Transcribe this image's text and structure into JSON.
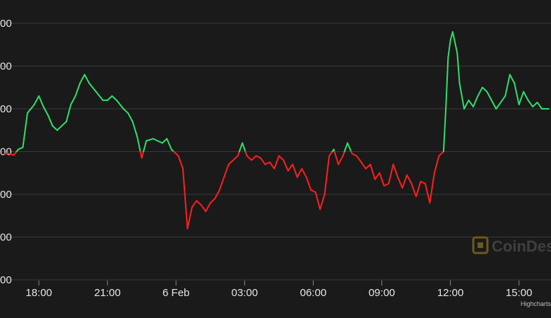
{
  "colors": {
    "background": "#1a1a1a",
    "grid": "#3a3a3a",
    "up": "#2ee06a",
    "down": "#ff1f1f",
    "text": "#e6e6e6"
  },
  "watermark": {
    "text": "CoinDesk",
    "icon": "coindesk-logo-icon"
  },
  "credit": "Highcharts",
  "chart_data": {
    "type": "line",
    "title": "",
    "xlabel": "",
    "ylabel": "",
    "y_tick_labels": [
      "00",
      "00",
      "00",
      "00",
      "00",
      "00",
      "00"
    ],
    "y_tick_levels": [
      6,
      5,
      4,
      3,
      2,
      1,
      0
    ],
    "ylim": [
      0,
      6.3
    ],
    "xlim": [
      16.3,
      40.4
    ],
    "x_tick_labels": [
      "18:00",
      "21:00",
      "6 Feb",
      "03:00",
      "06:00",
      "09:00",
      "12:00",
      "15:00"
    ],
    "x_tick_hours": [
      18,
      21,
      24,
      27,
      30,
      33,
      36,
      39
    ],
    "grid": true,
    "legend": "none",
    "color_rule": "green above reference level, red below",
    "reference_level": 3.0,
    "x": [
      16.5,
      16.7,
      16.9,
      17.1,
      17.3,
      17.5,
      17.8,
      18.0,
      18.2,
      18.4,
      18.6,
      18.8,
      19.0,
      19.2,
      19.4,
      19.6,
      19.8,
      20.0,
      20.2,
      20.5,
      20.8,
      21.0,
      21.2,
      21.4,
      21.7,
      21.9,
      22.1,
      22.3,
      22.5,
      22.7,
      23.0,
      23.2,
      23.4,
      23.6,
      23.8,
      24.0,
      24.1,
      24.3,
      24.5,
      24.7,
      24.9,
      25.1,
      25.3,
      25.5,
      25.7,
      25.9,
      26.1,
      26.3,
      26.5,
      26.7,
      26.9,
      27.1,
      27.3,
      27.5,
      27.7,
      27.9,
      28.1,
      28.3,
      28.5,
      28.7,
      28.9,
      29.1,
      29.3,
      29.5,
      29.7,
      29.9,
      30.1,
      30.3,
      30.5,
      30.7,
      30.9,
      31.1,
      31.3,
      31.5,
      31.7,
      31.9,
      32.1,
      32.3,
      32.5,
      32.7,
      32.9,
      33.1,
      33.3,
      33.5,
      33.7,
      33.9,
      34.1,
      34.3,
      34.5,
      34.7,
      34.9,
      35.1,
      35.3,
      35.5,
      35.7,
      35.8,
      35.9,
      36.0,
      36.1,
      36.2,
      36.3,
      36.4,
      36.6,
      36.8,
      37.0,
      37.2,
      37.4,
      37.6,
      37.8,
      38.0,
      38.2,
      38.4,
      38.6,
      38.8,
      39.0,
      39.2,
      39.4,
      39.6,
      39.8,
      40.0,
      40.3
    ],
    "y": [
      2.95,
      2.95,
      2.92,
      3.05,
      3.1,
      3.9,
      4.1,
      4.3,
      4.05,
      3.85,
      3.6,
      3.5,
      3.6,
      3.7,
      4.1,
      4.3,
      4.6,
      4.8,
      4.6,
      4.4,
      4.2,
      4.2,
      4.3,
      4.2,
      4.0,
      3.9,
      3.7,
      3.35,
      2.85,
      3.25,
      3.3,
      3.25,
      3.2,
      3.3,
      3.05,
      2.95,
      2.9,
      2.6,
      1.2,
      1.7,
      1.85,
      1.75,
      1.6,
      1.8,
      1.9,
      2.1,
      2.4,
      2.7,
      2.8,
      2.9,
      3.2,
      2.9,
      2.8,
      2.9,
      2.85,
      2.7,
      2.75,
      2.6,
      2.9,
      2.8,
      2.55,
      2.7,
      2.4,
      2.6,
      2.4,
      2.1,
      2.05,
      1.65,
      2.0,
      2.9,
      3.05,
      2.7,
      2.9,
      3.2,
      2.95,
      2.9,
      2.75,
      2.6,
      2.7,
      2.35,
      2.5,
      2.2,
      2.25,
      2.7,
      2.4,
      2.15,
      2.45,
      2.25,
      1.95,
      2.3,
      2.25,
      1.8,
      2.5,
      2.9,
      3.0,
      4.0,
      5.2,
      5.6,
      5.8,
      5.55,
      5.3,
      4.6,
      4.0,
      4.2,
      4.05,
      4.3,
      4.5,
      4.4,
      4.2,
      4.0,
      4.15,
      4.3,
      4.8,
      4.6,
      4.1,
      4.4,
      4.2,
      4.05,
      4.15,
      4.0,
      4.0
    ]
  }
}
